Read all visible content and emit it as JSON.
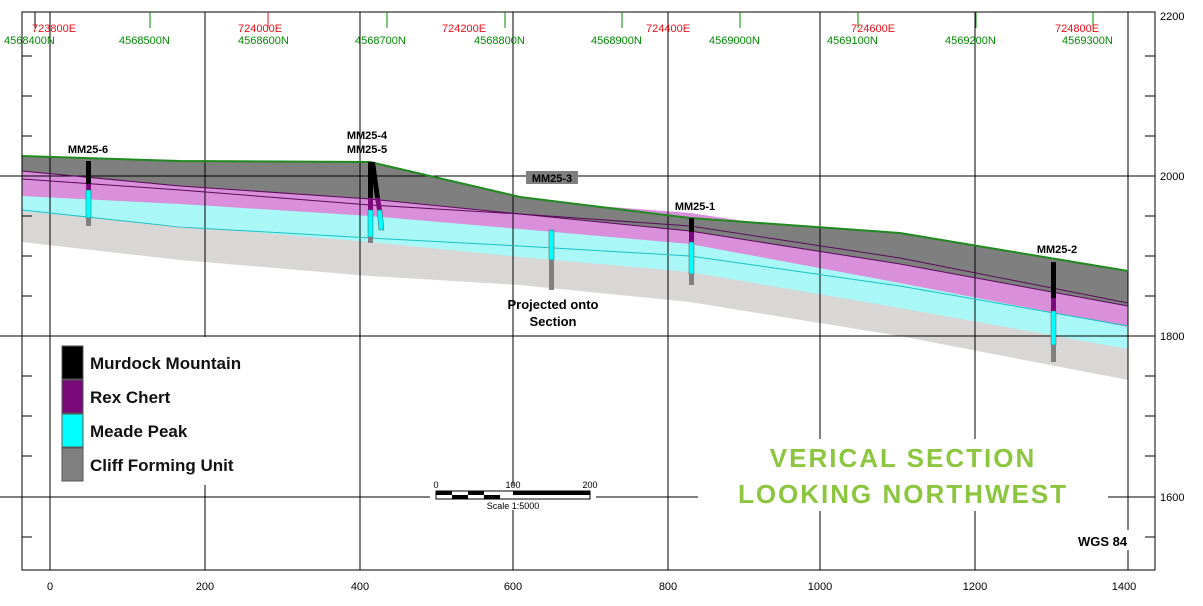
{
  "section": {
    "x_ticks": [
      "0",
      "200",
      "400",
      "600",
      "800",
      "1000",
      "1200",
      "1400"
    ],
    "y_ticks": [
      "1600",
      "1800",
      "2000",
      "2200"
    ],
    "easting_labels": [
      "723800E",
      "724000E",
      "724200E",
      "724400E",
      "724600E",
      "724800E"
    ],
    "northing_labels": [
      "4568400N",
      "4568500N",
      "4568600N",
      "4568700N",
      "4568800N",
      "4568900N",
      "4569000N",
      "4569100N",
      "4569200N",
      "4569300N"
    ],
    "drill_holes": [
      "MM25-6",
      "MM25-4",
      "MM25-5",
      "MM25-3",
      "MM25-1",
      "MM25-2"
    ],
    "projected_note": [
      "Projected onto",
      "Section"
    ],
    "legend": [
      {
        "label": "Murdock Mountain",
        "color": "#000000"
      },
      {
        "label": "Rex Chert",
        "color": "#7a0a7a"
      },
      {
        "label": "Meade Peak",
        "color": "#00ffff"
      },
      {
        "label": "Cliff Forming Unit",
        "color": "#808080"
      }
    ],
    "scale_bar": {
      "ticks": [
        "0",
        "100",
        "200"
      ],
      "label": "Scale 1:5000"
    },
    "title": [
      "VERICAL SECTION",
      "LOOKING NORTHWEST"
    ],
    "datum": "WGS 84",
    "colors": {
      "murdock": "#7f7f7f",
      "rex": "#d98fd9",
      "meade": "#a9f7f7",
      "cliff": "#d9d6d6",
      "topo_line": "#1f8a1f",
      "rex_line": "#5a0a5a",
      "meade_line": "#17c3c3",
      "easting": "#e8101a",
      "northing": "#008a00",
      "title": "#8cc63f"
    }
  }
}
